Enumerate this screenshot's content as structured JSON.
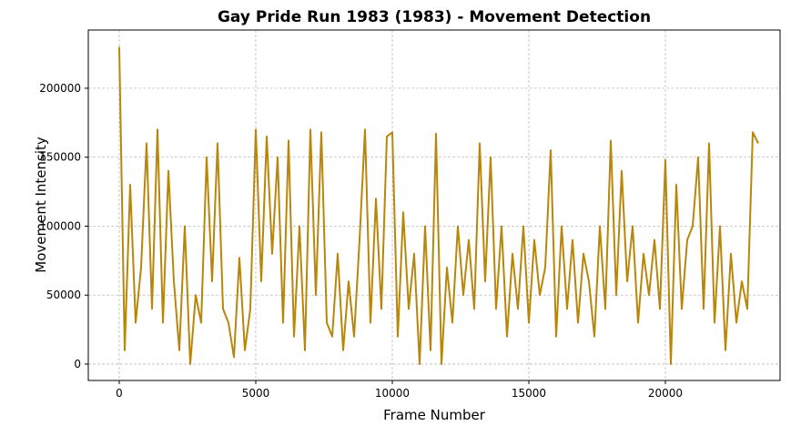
{
  "chart_data": {
    "type": "line",
    "title": "Gay Pride Run 1983 (1983) - Movement Detection",
    "x_label": "Frame Number",
    "y_label": "Movement Intensity",
    "color": "#b8860b",
    "grid": true,
    "xlim": [
      -1133,
      24200
    ],
    "ylim": [
      -11900,
      242200
    ],
    "xticks": [
      0,
      5000,
      10000,
      15000,
      20000
    ],
    "yticks": [
      0,
      50000,
      100000,
      150000,
      200000
    ],
    "x": [
      0,
      200,
      400,
      600,
      800,
      1000,
      1200,
      1400,
      1600,
      1800,
      2000,
      2200,
      2400,
      2600,
      2800,
      3000,
      3200,
      3400,
      3600,
      3800,
      4000,
      4200,
      4400,
      4600,
      4800,
      5000,
      5200,
      5400,
      5600,
      5800,
      6000,
      6200,
      6400,
      6600,
      6800,
      7000,
      7200,
      7400,
      7600,
      7800,
      8000,
      8200,
      8400,
      8600,
      8800,
      9000,
      9200,
      9400,
      9600,
      9800,
      10000,
      10200,
      10400,
      10600,
      10800,
      11000,
      11200,
      11400,
      11600,
      11800,
      12000,
      12200,
      12400,
      12600,
      12800,
      13000,
      13200,
      13400,
      13600,
      13800,
      14000,
      14200,
      14400,
      14600,
      14800,
      15000,
      15200,
      15400,
      15600,
      15800,
      16000,
      16200,
      16400,
      16600,
      16800,
      17000,
      17200,
      17400,
      17600,
      17800,
      18000,
      18200,
      18400,
      18600,
      18800,
      19000,
      19200,
      19400,
      19600,
      19800,
      20000,
      20200,
      20400,
      20600,
      20800,
      21000,
      21200,
      21400,
      21600,
      21800,
      22000,
      22200,
      22400,
      22600,
      22800,
      23000,
      23200,
      23400
    ],
    "values": [
      230000,
      10000,
      130000,
      30000,
      70000,
      160000,
      40000,
      170000,
      30000,
      140000,
      60000,
      10000,
      100000,
      0,
      50000,
      30000,
      150000,
      60000,
      160000,
      40000,
      30000,
      5000,
      77000,
      10000,
      40000,
      170000,
      60000,
      165000,
      80000,
      150000,
      30000,
      162000,
      20000,
      100000,
      10000,
      170000,
      50000,
      168000,
      30000,
      20000,
      80000,
      10000,
      60000,
      20000,
      90000,
      170000,
      30000,
      120000,
      40000,
      165000,
      168000,
      20000,
      110000,
      40000,
      80000,
      0,
      100000,
      10000,
      167000,
      0,
      70000,
      30000,
      100000,
      50000,
      90000,
      40000,
      160000,
      60000,
      150000,
      40000,
      100000,
      20000,
      80000,
      40000,
      100000,
      30000,
      90000,
      50000,
      70000,
      155000,
      20000,
      100000,
      40000,
      90000,
      30000,
      80000,
      60000,
      20000,
      100000,
      40000,
      162000,
      50000,
      140000,
      60000,
      100000,
      30000,
      80000,
      50000,
      90000,
      40000,
      148000,
      0,
      130000,
      40000,
      90000,
      100000,
      150000,
      40000,
      160000,
      30000,
      100000,
      10000,
      80000,
      30000,
      60000,
      40000,
      168000,
      160000
    ]
  }
}
